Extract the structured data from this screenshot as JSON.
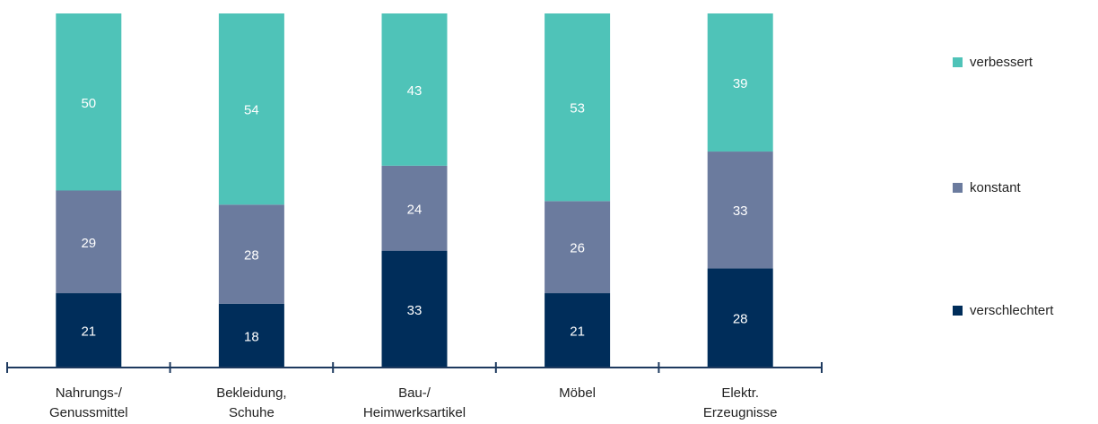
{
  "chart_data": {
    "type": "bar",
    "stacked": true,
    "categories": [
      "Nahrungs-/\nGenussmittel",
      "Bekleidung,\nSchuhe",
      "Bau-/\nHeimwerksartikel",
      "Möbel",
      "Elektr.\nErzeugnisse"
    ],
    "series": [
      {
        "name": "verschlechtert",
        "color": "#002d5a",
        "values": [
          21,
          18,
          33,
          21,
          28
        ]
      },
      {
        "name": "konstant",
        "color": "#6b7b9e",
        "values": [
          29,
          28,
          24,
          26,
          33
        ]
      },
      {
        "name": "verbessert",
        "color": "#4fc3b8",
        "values": [
          50,
          54,
          43,
          53,
          39
        ]
      }
    ],
    "ylim": [
      0,
      100
    ],
    "grid": false,
    "legend_position": "right",
    "label_color": "#ffffff",
    "axis_color": "#1e3a5f"
  }
}
